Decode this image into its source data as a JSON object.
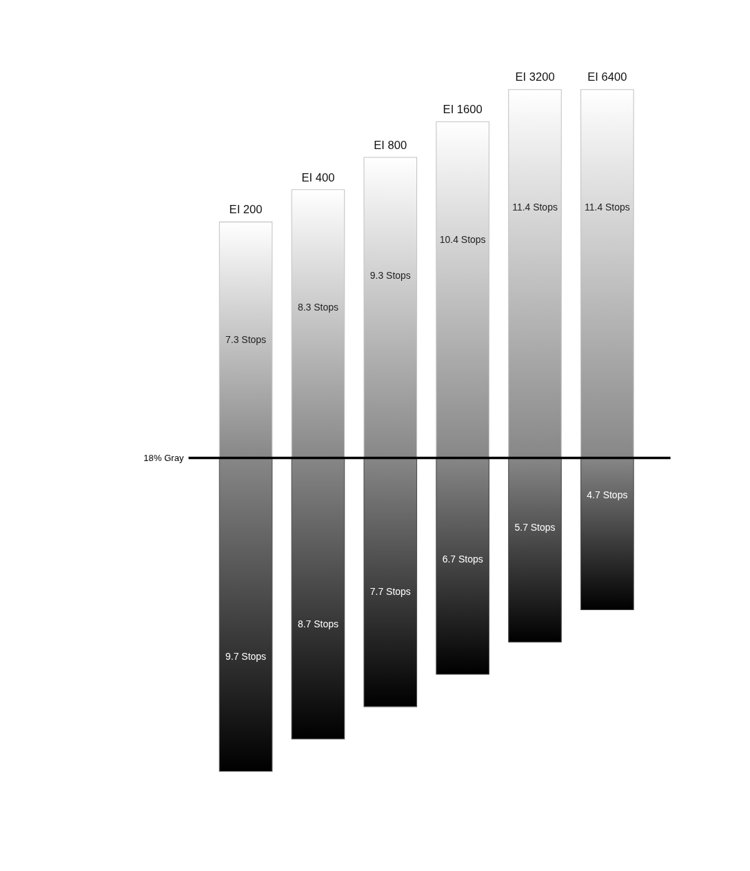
{
  "chart_data": {
    "type": "bar",
    "stacked": true,
    "categories": [
      "EI 200",
      "EI 400",
      "EI 800",
      "EI 1600",
      "EI 3200",
      "EI 6400"
    ],
    "series": [
      {
        "color": "#c4c4c4",
        "values": [
          7.3,
          8.3,
          9.3,
          10.4,
          11.4,
          11.4
        ],
        "value_labels": [
          "7.3 Stops",
          "8.3 Stops",
          "9.3 Stops",
          "10.4 Stops",
          "11.4 Stops",
          "11.4 Stops"
        ]
      },
      {
        "color": "#4a4a4a",
        "values": [
          -9.7,
          -8.7,
          -7.7,
          -6.7,
          -5.7,
          -4.7
        ]
      }
    ],
    "annotations": [
      "9.7 Stops",
      "8.7 Stops",
      "7.7 Stops",
      "6.7 Stops",
      "5.7 Stops",
      "4.7 Stops"
    ],
    "ref_lines": [
      {
        "axis": "y",
        "value": 0,
        "label": "18% Gray",
        "color": "#000000"
      }
    ],
    "grid": false,
    "legend": false
  }
}
